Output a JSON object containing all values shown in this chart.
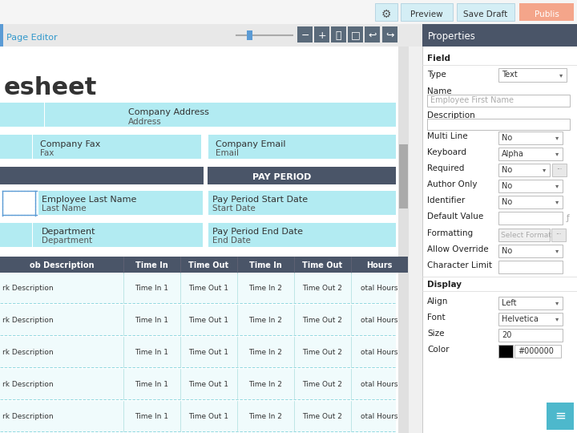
{
  "bg_color": "#f0f0f0",
  "form_bg": "#ffffff",
  "cyan_highlight": "#b2ebf2",
  "dark_header": "#4a5568",
  "toolbar_dark": "#5a6a7a",
  "panel_bg": "#ffffff",
  "top_bar_bg": "#f5f5f5",
  "toolbar_bg": "#e8e8e8",
  "title_text": "esheet",
  "page_editor_label": "Page Editor",
  "properties_label": "Properties",
  "scrollbar_bg": "#d0d0d0",
  "scrollbar_thumb": "#9a9a9a",
  "cyan_left_strip": "#b2ebf2",
  "white": "#ffffff",
  "light_gray": "#e8e8e8",
  "border_color": "#cccccc",
  "text_dark": "#333333",
  "text_mid": "#555555",
  "text_light": "#aaaaaa",
  "blue_tab": "#5b9bd5",
  "blue_text": "#3399cc",
  "orange_btn": "#f4a58a",
  "chat_bg": "#4db8cc"
}
